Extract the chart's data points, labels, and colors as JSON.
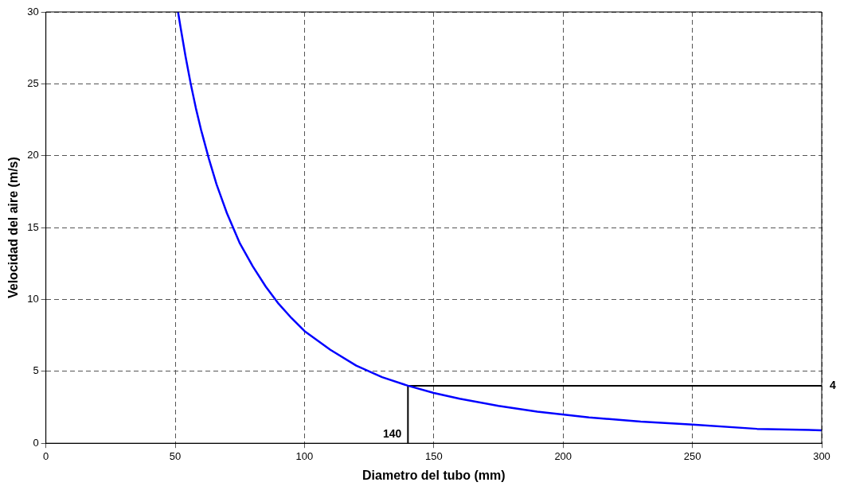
{
  "chart_data": {
    "type": "line",
    "xlabel": "Diametro del tubo (mm)",
    "ylabel": "Velocidad del aire (m/s)",
    "xlim": [
      0,
      300
    ],
    "xticks": [
      0,
      50,
      100,
      150,
      200,
      250,
      300
    ],
    "ylim": [
      0,
      30
    ],
    "yticks": [
      0,
      5,
      10,
      15,
      20,
      25,
      30
    ],
    "grid": true,
    "legend": false,
    "marker": "none",
    "line_style": "solid",
    "series": [
      {
        "color": "#0000ff",
        "x": [
          51.1,
          52,
          54,
          56,
          58,
          60,
          63,
          66,
          70,
          75,
          80,
          85,
          90,
          95,
          100,
          110,
          120,
          130,
          140,
          150,
          160,
          175,
          190,
          210,
          230,
          250,
          275,
          300
        ],
        "values": [
          30.0,
          29.0,
          26.9,
          25.0,
          23.3,
          21.8,
          19.8,
          18.0,
          16.0,
          13.9,
          12.3,
          10.9,
          9.7,
          8.7,
          7.8,
          6.5,
          5.4,
          4.6,
          4.0,
          3.5,
          3.1,
          2.6,
          2.2,
          1.8,
          1.5,
          1.3,
          1.0,
          0.9
        ]
      },
      {
        "type": "line",
        "color": "#000000",
        "x": [
          140,
          140,
          300
        ],
        "values": [
          0,
          4,
          4
        ]
      }
    ],
    "annotations": [
      {
        "text": "140",
        "x": 140,
        "y": 0
      },
      {
        "text": "4",
        "x": 300,
        "y": 4
      }
    ]
  }
}
